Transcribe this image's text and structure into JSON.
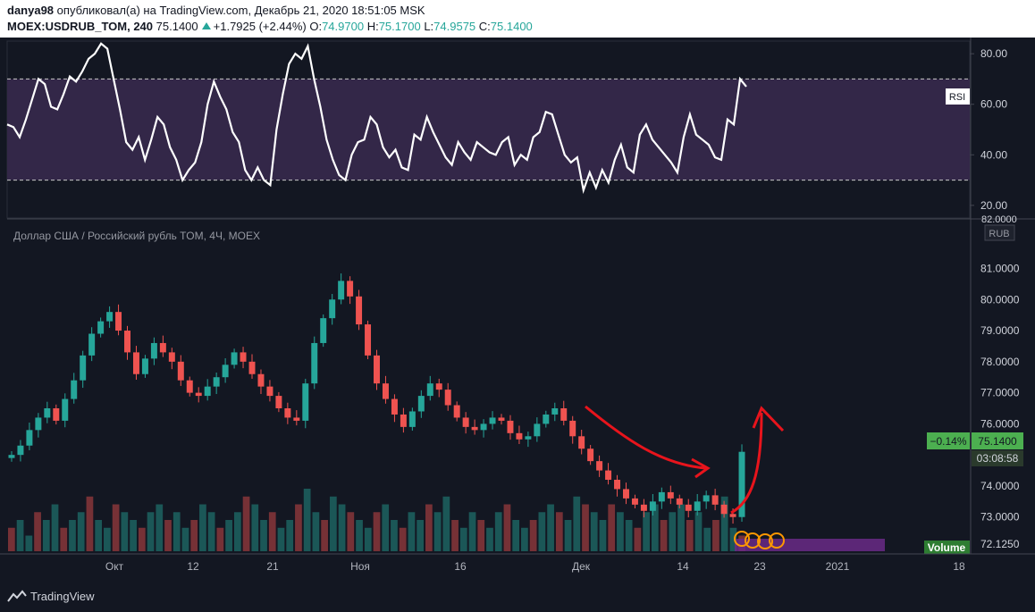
{
  "header": {
    "author": "danya98",
    "published_text": "опубликовал(а) на TradingView.com, Декабрь 21, 2020 18:51:05 MSK",
    "symbol": "MOEX:USDRUB_TOM, 240",
    "last": "75.1400",
    "change": "+1.7925 (+2.44%)",
    "o_label": "O:",
    "o_value": "74.9700",
    "h_label": "H:",
    "h_value": "75.1700",
    "l_label": "L:",
    "l_value": "74.9575",
    "c_label": "C:",
    "c_value": "75.1400"
  },
  "footer": {
    "brand": "TradingView"
  },
  "colors": {
    "up": "#26a69a",
    "down": "#ef5350",
    "rsi_band": "#332748",
    "rsi_line": "#ffffff",
    "annotation": "#e8141c",
    "price_tag": "#4caf50",
    "volume_badge": "#2e7d32"
  },
  "chart_data": [
    {
      "type": "line",
      "label": "RSI",
      "ylim": [
        15,
        85
      ],
      "y_ticks": [
        "80.00",
        "60.00",
        "40.00",
        "20.00"
      ],
      "band": [
        30,
        70
      ],
      "last_value_approx": 67,
      "values": [
        52,
        51,
        47,
        54,
        62,
        70,
        68,
        59,
        58,
        64,
        71,
        69,
        73,
        78,
        80,
        84,
        82,
        70,
        58,
        45,
        42,
        47,
        38,
        46,
        55,
        52,
        43,
        38,
        30,
        34,
        37,
        45,
        60,
        69,
        63,
        58,
        49,
        45,
        34,
        30,
        35,
        30,
        28,
        50,
        64,
        76,
        80,
        78,
        83,
        70,
        59,
        46,
        38,
        32,
        30,
        40,
        45,
        46,
        55,
        52,
        43,
        39,
        42,
        35,
        34,
        48,
        46,
        55,
        49,
        44,
        39,
        36,
        45,
        41,
        38,
        45,
        43,
        41,
        40,
        45,
        47,
        36,
        40,
        38,
        47,
        49,
        57,
        56,
        48,
        40,
        37,
        39,
        26,
        33,
        27,
        34,
        29,
        38,
        44,
        35,
        33,
        48,
        52,
        46,
        43,
        40,
        37,
        33,
        47,
        56,
        48,
        46,
        44,
        39,
        38,
        54,
        52,
        70,
        67
      ]
    },
    {
      "type": "candlestick",
      "title": "Доллар США / Российский рубль TOM, 4Ч, MOEX",
      "currency": "RUB",
      "ylim": [
        71.9,
        82.25
      ],
      "y_ticks": [
        "81.0000",
        "80.0000",
        "79.0000",
        "78.0000",
        "77.0000",
        "76.0000",
        "74.0000",
        "73.0000",
        "72.1250"
      ],
      "last_price": "75.1400",
      "last_change": "−0.14%",
      "countdown": "03:08:58",
      "top_label": "82.0000",
      "x_ticks": [
        "Окт",
        "12",
        "21",
        "Ноя",
        "16",
        "Дек",
        "14",
        "23",
        "2021",
        "18"
      ],
      "close": [
        75.0,
        75.3,
        75.8,
        76.2,
        76.5,
        76.1,
        76.8,
        77.4,
        78.2,
        78.9,
        79.3,
        79.6,
        79.0,
        78.3,
        77.6,
        78.1,
        78.6,
        78.3,
        78.0,
        77.4,
        77.0,
        76.9,
        77.2,
        77.5,
        77.9,
        78.3,
        78.0,
        77.6,
        77.2,
        76.9,
        76.5,
        76.2,
        76.1,
        77.3,
        78.6,
        79.4,
        80.0,
        80.6,
        80.1,
        79.2,
        78.2,
        77.3,
        76.8,
        76.3,
        75.9,
        76.4,
        76.9,
        77.3,
        77.1,
        76.6,
        76.2,
        75.9,
        75.8,
        76.0,
        76.2,
        76.1,
        75.7,
        75.5,
        75.6,
        76.0,
        76.3,
        76.5,
        76.1,
        75.6,
        75.2,
        74.8,
        74.5,
        74.2,
        73.9,
        73.6,
        73.4,
        73.2,
        73.5,
        73.8,
        73.6,
        73.4,
        73.2,
        73.5,
        73.7,
        73.4,
        73.1,
        73.0,
        75.1
      ]
    },
    {
      "type": "bar",
      "label": "Volume",
      "values": [
        3,
        4,
        2,
        5,
        4,
        6,
        3,
        4,
        5,
        7,
        4,
        3,
        6,
        5,
        4,
        3,
        5,
        6,
        4,
        5,
        3,
        4,
        6,
        5,
        3,
        4,
        5,
        7,
        6,
        4,
        5,
        3,
        4,
        6,
        8,
        5,
        4,
        7,
        6,
        5,
        4,
        3,
        5,
        6,
        4,
        3,
        5,
        4,
        6,
        5,
        7,
        4,
        3,
        5,
        4,
        3,
        5,
        6,
        4,
        3,
        4,
        5,
        6,
        5,
        4,
        7,
        6,
        5,
        4,
        6,
        5,
        4,
        3,
        5,
        6,
        4,
        5,
        6,
        4,
        5,
        3,
        4,
        7,
        3,
        2
      ]
    }
  ]
}
